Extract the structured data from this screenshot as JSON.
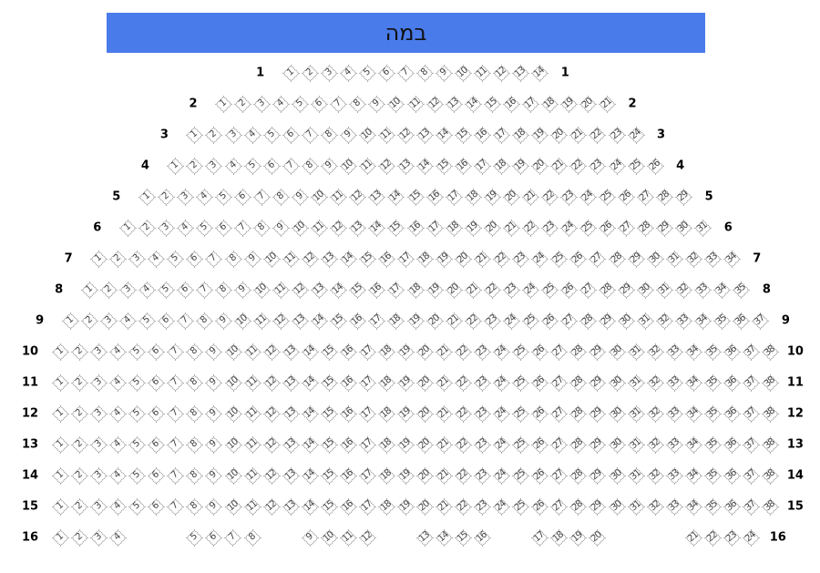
{
  "stage": {
    "label": "במה",
    "color": "#4a7bea"
  },
  "rows": [
    {
      "label": "1",
      "seats": 14
    },
    {
      "label": "2",
      "seats": 21
    },
    {
      "label": "3",
      "seats": 24
    },
    {
      "label": "4",
      "seats": 26
    },
    {
      "label": "5",
      "seats": 29
    },
    {
      "label": "6",
      "seats": 31
    },
    {
      "label": "7",
      "seats": 34
    },
    {
      "label": "8",
      "seats": 35
    },
    {
      "label": "9",
      "seats": 37
    },
    {
      "label": "10",
      "seats": 38
    },
    {
      "label": "11",
      "seats": 38
    },
    {
      "label": "12",
      "seats": 38
    },
    {
      "label": "13",
      "seats": 38
    },
    {
      "label": "14",
      "seats": 38
    },
    {
      "label": "15",
      "seats": 38
    },
    {
      "label": "16",
      "seats": 24
    }
  ]
}
